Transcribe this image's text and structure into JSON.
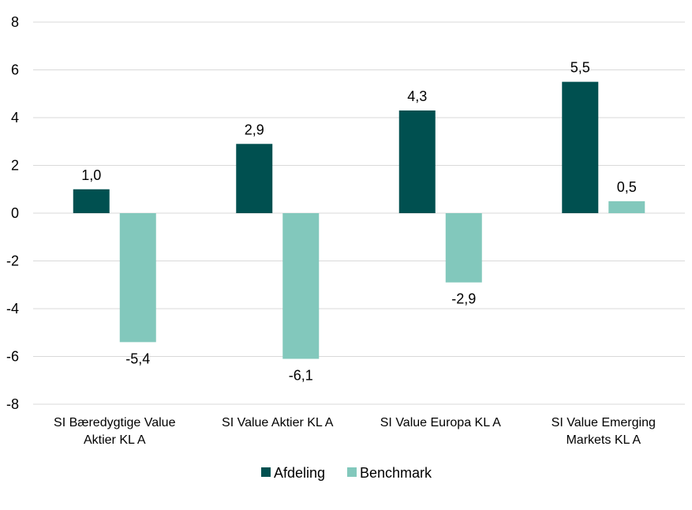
{
  "chart_data": {
    "type": "bar",
    "title": "",
    "xlabel": "",
    "ylabel": "",
    "ylim": [
      -8,
      8
    ],
    "yticks": [
      8,
      6,
      4,
      2,
      0,
      -2,
      -4,
      -6,
      -8
    ],
    "yticklabels": [
      "8",
      "6",
      "4",
      "2",
      "0",
      "-2",
      "-4",
      "-6",
      "-8"
    ],
    "grid": true,
    "legend_position": "bottom-center",
    "categories": [
      [
        "SI Bæredygtige Value",
        "Aktier KL A"
      ],
      [
        "SI Value Aktier KL A"
      ],
      [
        "SI Value Europa KL A"
      ],
      [
        "SI Value Emerging",
        "Markets KL A"
      ]
    ],
    "series": [
      {
        "name": "Afdeling",
        "color": "#005050",
        "values": [
          1.0,
          2.9,
          4.3,
          5.5
        ],
        "labels": [
          "1,0",
          "2,9",
          "4,3",
          "5,5"
        ]
      },
      {
        "name": "Benchmark",
        "color": "#82c8bc",
        "values": [
          -5.4,
          -6.1,
          -2.9,
          0.5
        ],
        "labels": [
          "-5,4",
          "-6,1",
          "-2,9",
          "0,5"
        ]
      }
    ]
  }
}
